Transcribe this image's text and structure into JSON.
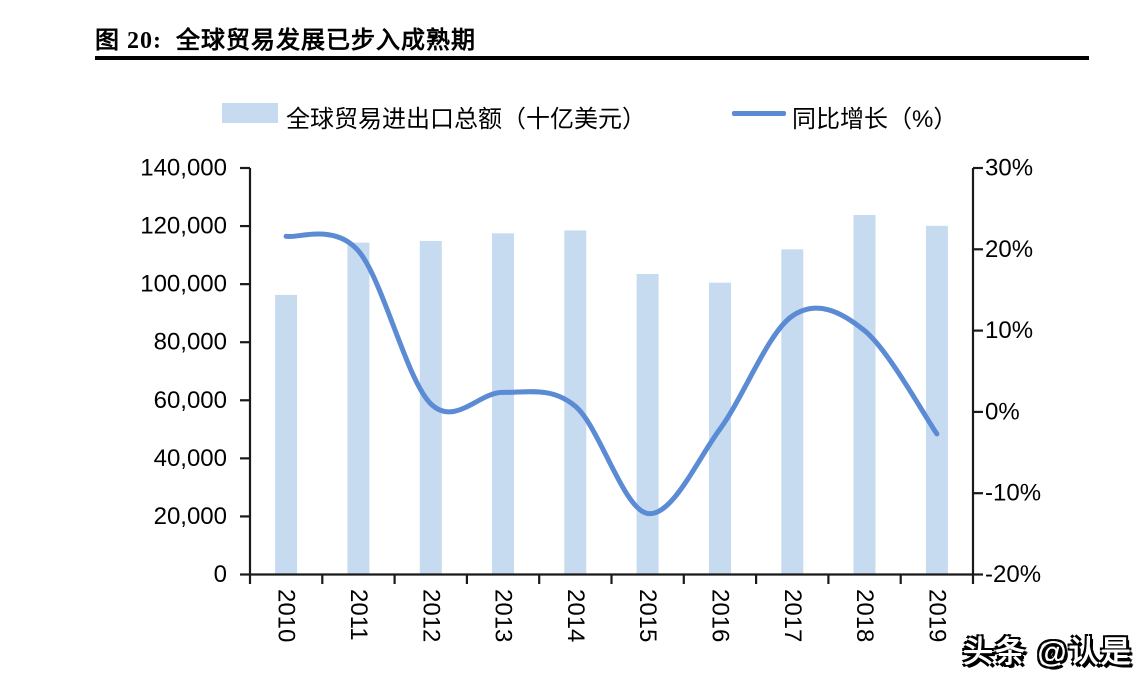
{
  "figure": {
    "title": "图 20:  全球贸易发展已步入成熟期",
    "watermark": "头条 @认是"
  },
  "legend": [
    {
      "type": "bar",
      "label": "全球贸易进出口总额（十亿美元）"
    },
    {
      "type": "line",
      "label": "同比增长（%）"
    }
  ],
  "colors": {
    "bar_fill": "#C7DBF0",
    "line_stroke": "#5B8BD4",
    "axis": "#1a1a1a",
    "text": "#000000"
  },
  "chart_data": {
    "type": "bar+line combo",
    "title": "全球贸易发展已步入成熟期",
    "categories": [
      "2010",
      "2011",
      "2012",
      "2013",
      "2014",
      "2015",
      "2016",
      "2017",
      "2018",
      "2019"
    ],
    "series": [
      {
        "name": "全球贸易进出口总额（十亿美元）",
        "type": "bar",
        "axis": "left",
        "values": [
          96300,
          114300,
          114900,
          117500,
          118500,
          103500,
          100500,
          112000,
          123800,
          120100
        ]
      },
      {
        "name": "同比增长（%）",
        "type": "line",
        "axis": "right",
        "smooth": true,
        "values": [
          21.6,
          19.8,
          1.0,
          2.4,
          0.7,
          -12.5,
          -2.1,
          11.8,
          10.0,
          -2.7
        ]
      }
    ],
    "left_axis": {
      "min": 0,
      "max": 140000,
      "step": 20000,
      "tick_labels_top_to_bottom": [
        "140,000",
        "120,000",
        "100,000",
        "80,000",
        "60,000",
        "40,000",
        "20,000",
        "0"
      ]
    },
    "right_axis": {
      "min": -20,
      "max": 30,
      "step": 10,
      "tick_labels_top_to_bottom": [
        "30%",
        "20%",
        "10%",
        "0%",
        "-10%",
        "-20%"
      ]
    },
    "grid": false,
    "legend_position": "top",
    "x_label_rotation_deg": 90
  }
}
